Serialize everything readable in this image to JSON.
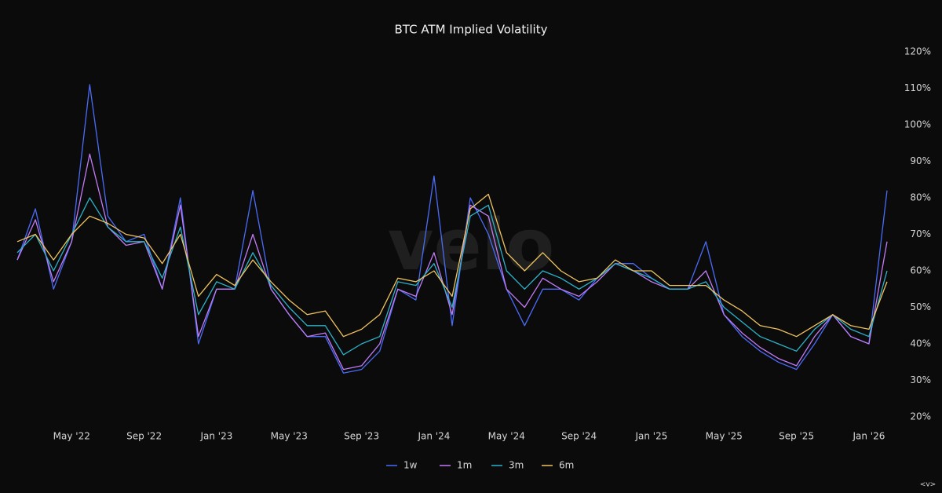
{
  "chart_data": {
    "type": "line",
    "title": "BTC ATM Implied Volatility",
    "watermark": "velo",
    "footer_mark": "<v>",
    "x": [
      "2022-02",
      "2022-03",
      "2022-04",
      "2022-05",
      "2022-06",
      "2022-07",
      "2022-08",
      "2022-09",
      "2022-10",
      "2022-11",
      "2022-12",
      "2023-01",
      "2023-02",
      "2023-03",
      "2023-04",
      "2023-05",
      "2023-06",
      "2023-07",
      "2023-08",
      "2023-09",
      "2023-10",
      "2023-11",
      "2023-12",
      "2024-01",
      "2024-02",
      "2024-03",
      "2024-04",
      "2024-05",
      "2024-06",
      "2024-07",
      "2024-08",
      "2024-09",
      "2024-10",
      "2024-11",
      "2024-12",
      "2025-01",
      "2025-02",
      "2025-03",
      "2025-04",
      "2025-05",
      "2025-06",
      "2025-07",
      "2025-08",
      "2025-09",
      "2025-10",
      "2025-11",
      "2025-12",
      "2026-01",
      "2026-02"
    ],
    "series": [
      {
        "name": "1w",
        "color": "#4a6cf7",
        "values": [
          63,
          77,
          55,
          68,
          111,
          75,
          68,
          70,
          55,
          80,
          40,
          55,
          55,
          82,
          55,
          48,
          42,
          42,
          32,
          33,
          38,
          55,
          52,
          86,
          45,
          80,
          70,
          55,
          45,
          55,
          55,
          52,
          58,
          62,
          62,
          58,
          55,
          55,
          68,
          48,
          42,
          38,
          35,
          33,
          40,
          48,
          42,
          40,
          82
        ]
      },
      {
        "name": "1m",
        "color": "#c27cf5",
        "values": [
          63,
          74,
          57,
          68,
          92,
          72,
          67,
          68,
          55,
          78,
          42,
          55,
          55,
          70,
          55,
          48,
          42,
          43,
          33,
          34,
          40,
          55,
          53,
          65,
          48,
          78,
          75,
          55,
          50,
          58,
          55,
          53,
          57,
          62,
          60,
          57,
          55,
          55,
          60,
          48,
          43,
          39,
          36,
          34,
          42,
          48,
          42,
          40,
          68
        ]
      },
      {
        "name": "3m",
        "color": "#2bb3c9",
        "values": [
          65,
          70,
          60,
          70,
          80,
          72,
          68,
          68,
          58,
          72,
          48,
          57,
          55,
          65,
          56,
          50,
          45,
          45,
          37,
          40,
          42,
          57,
          56,
          62,
          50,
          75,
          78,
          60,
          55,
          60,
          58,
          55,
          58,
          62,
          60,
          58,
          55,
          55,
          57,
          50,
          46,
          42,
          40,
          38,
          44,
          48,
          44,
          42,
          60
        ]
      },
      {
        "name": "6m",
        "color": "#f0c35e",
        "values": [
          68,
          70,
          63,
          70,
          75,
          73,
          70,
          69,
          62,
          70,
          53,
          59,
          56,
          63,
          57,
          52,
          48,
          49,
          42,
          44,
          48,
          58,
          57,
          60,
          53,
          77,
          81,
          65,
          60,
          65,
          60,
          57,
          58,
          63,
          60,
          60,
          56,
          56,
          56,
          52,
          49,
          45,
          44,
          42,
          45,
          48,
          45,
          44,
          57
        ]
      }
    ],
    "ylim": [
      20,
      120
    ],
    "yticks": [
      {
        "value": 20,
        "label": "20%"
      },
      {
        "value": 30,
        "label": "30%"
      },
      {
        "value": 40,
        "label": "40%"
      },
      {
        "value": 50,
        "label": "50%"
      },
      {
        "value": 60,
        "label": "60%"
      },
      {
        "value": 70,
        "label": "70%"
      },
      {
        "value": 80,
        "label": "80%"
      },
      {
        "value": 90,
        "label": "90%"
      },
      {
        "value": 100,
        "label": "100%"
      },
      {
        "value": 110,
        "label": "110%"
      },
      {
        "value": 120,
        "label": "120%"
      }
    ],
    "xticks": [
      {
        "value": "2022-05",
        "label": "May '22"
      },
      {
        "value": "2022-09",
        "label": "Sep '22"
      },
      {
        "value": "2023-01",
        "label": "Jan '23"
      },
      {
        "value": "2023-05",
        "label": "May '23"
      },
      {
        "value": "2023-09",
        "label": "Sep '23"
      },
      {
        "value": "2024-01",
        "label": "Jan '24"
      },
      {
        "value": "2024-05",
        "label": "May '24"
      },
      {
        "value": "2024-09",
        "label": "Sep '24"
      },
      {
        "value": "2025-01",
        "label": "Jan '25"
      },
      {
        "value": "2025-05",
        "label": "May '25"
      },
      {
        "value": "2025-09",
        "label": "Sep '25"
      },
      {
        "value": "2026-01",
        "label": "Jan '26"
      }
    ],
    "grid": false,
    "legend": "bottom"
  }
}
